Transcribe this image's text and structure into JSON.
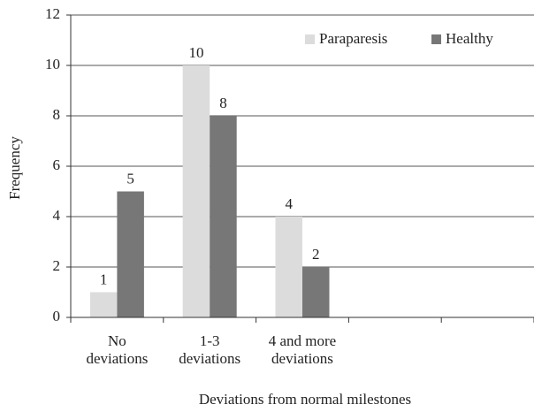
{
  "chart_data": {
    "type": "bar",
    "x_label": "Deviations from normal milestones",
    "y_label": "Frequency",
    "categories": [
      [
        "No",
        "deviations"
      ],
      [
        "1-3",
        "deviations"
      ],
      [
        "4 and more",
        "deviations"
      ],
      null,
      null
    ],
    "series": [
      {
        "name": "Paraparesis",
        "color": "#dcdcdc",
        "values": [
          1,
          10,
          4,
          null,
          null
        ]
      },
      {
        "name": "Healthy",
        "color": "#777777",
        "values": [
          5,
          8,
          2,
          null,
          null
        ]
      }
    ],
    "ylim": [
      0,
      12
    ],
    "yticks": [
      0,
      2,
      4,
      6,
      8,
      10,
      12
    ],
    "grid": true,
    "legend": "top-right"
  }
}
